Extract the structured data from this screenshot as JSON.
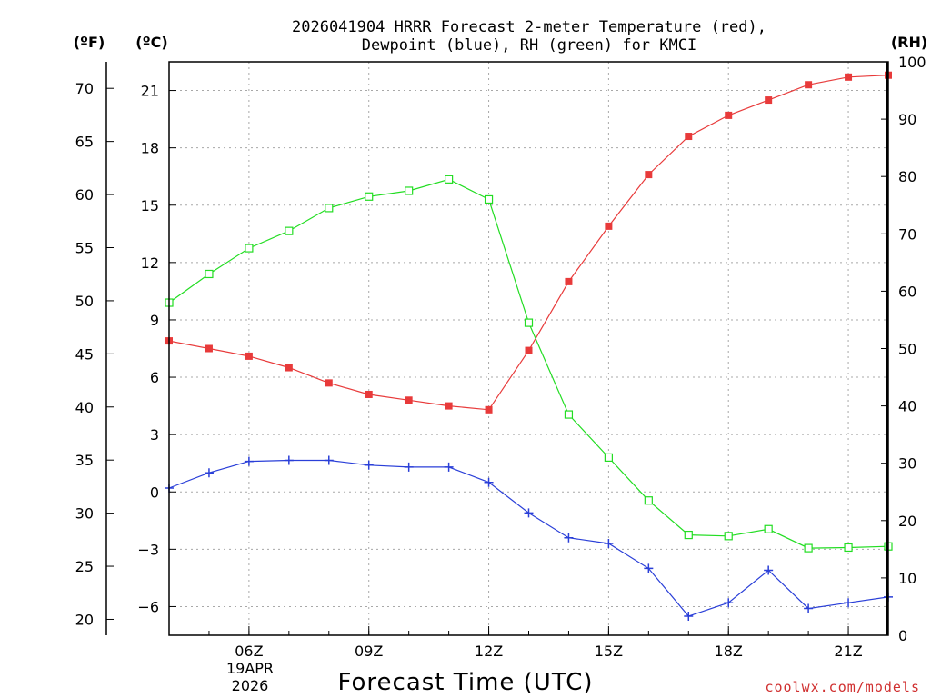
{
  "chart_data": {
    "type": "line",
    "title_line1": "2026041904 HRRR Forecast 2-meter Temperature (red),",
    "title_line2": "Dewpoint (blue), RH (green) for KMCI",
    "xlabel": "Forecast Time (UTC)",
    "credit": "coolwx.com/models",
    "date_label": {
      "day": "19APR",
      "year": "2026"
    },
    "units": {
      "fahrenheit": "(ºF)",
      "celsius": "(ºC)",
      "rh": "(RH)"
    },
    "x_hours": [
      4,
      5,
      6,
      7,
      8,
      9,
      10,
      11,
      12,
      13,
      14,
      15,
      16,
      17,
      18,
      19,
      20,
      21,
      22
    ],
    "x_ticks": [
      {
        "hour": 6,
        "label": "06Z"
      },
      {
        "hour": 9,
        "label": "09Z"
      },
      {
        "hour": 12,
        "label": "12Z"
      },
      {
        "hour": 15,
        "label": "15Z"
      },
      {
        "hour": 18,
        "label": "18Z"
      },
      {
        "hour": 21,
        "label": "21Z"
      }
    ],
    "xlim": [
      4,
      22
    ],
    "celsius_axis": {
      "ylim": [
        -7.5,
        22.5
      ],
      "ticks": [
        -6,
        -3,
        0,
        3,
        6,
        9,
        12,
        15,
        18,
        21
      ]
    },
    "fahrenheit_axis": {
      "ticks": [
        20,
        25,
        30,
        35,
        40,
        45,
        50,
        55,
        60,
        65,
        70
      ]
    },
    "rh_axis": {
      "ylim": [
        0,
        100
      ],
      "ticks": [
        0,
        10,
        20,
        30,
        40,
        50,
        60,
        70,
        80,
        90,
        100
      ]
    },
    "colors": {
      "temperature": "#e83a3a",
      "dewpoint": "#2a3fd8",
      "rh": "#22dd22"
    },
    "series": [
      {
        "name": "Temperature (°C)",
        "axis": "celsius",
        "marker": "filled-square",
        "color": "#e83a3a",
        "values": [
          7.9,
          7.5,
          7.1,
          6.5,
          5.7,
          5.1,
          4.8,
          4.5,
          4.3,
          7.4,
          11.0,
          13.9,
          16.6,
          18.6,
          19.7,
          20.5,
          21.3,
          21.7,
          21.8
        ]
      },
      {
        "name": "Dewpoint (°C)",
        "axis": "celsius",
        "marker": "plus",
        "color": "#2a3fd8",
        "values": [
          0.2,
          1.0,
          1.6,
          1.65,
          1.65,
          1.4,
          1.3,
          1.3,
          0.5,
          -1.1,
          -2.4,
          -2.7,
          -4.0,
          -6.5,
          -5.8,
          -4.1,
          -6.1,
          -5.8,
          -5.5
        ]
      },
      {
        "name": "RH (%)",
        "axis": "rh",
        "marker": "open-square",
        "color": "#22dd22",
        "values": [
          58.0,
          63.0,
          67.5,
          70.5,
          74.5,
          76.5,
          77.5,
          79.5,
          76.0,
          54.5,
          38.5,
          31.0,
          23.5,
          17.5,
          17.3,
          18.5,
          15.2,
          15.3,
          15.5
        ]
      }
    ]
  }
}
